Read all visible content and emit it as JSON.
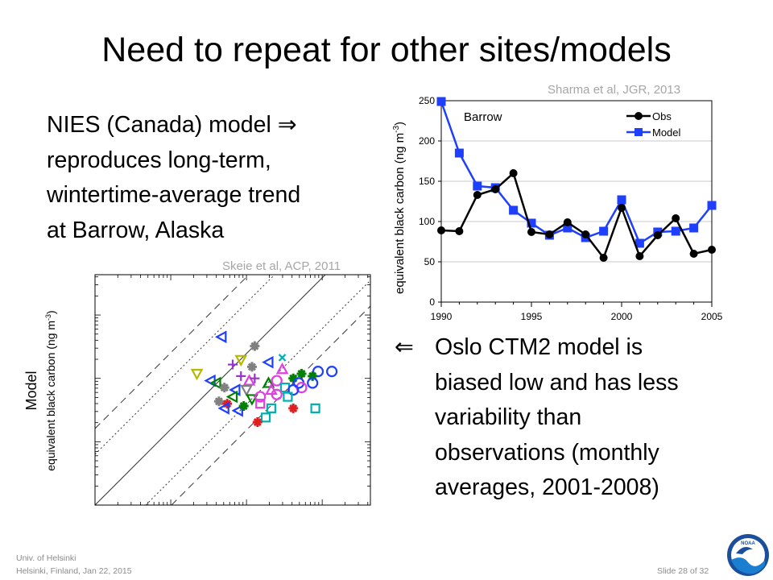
{
  "slide": {
    "title": "Need to repeat for other sites/models",
    "left_text": [
      "NIES (Canada) model   ⇒",
      "reproduces long-term,",
      "wintertime-average trend",
      "at Barrow, Alaska"
    ],
    "right_arrow": "⇐",
    "right_text": [
      "Oslo CTM2 model is",
      "biased low and has less",
      "variability than",
      "observations (monthly",
      "averages, 2001-2008)"
    ],
    "footer": {
      "line1": "Univ. of Helsinki",
      "line2": "Helsinki, Finland, Jan 22, 2015",
      "slide_number": "Slide 28 of 32",
      "logo_text": "NOAA"
    },
    "colors": {
      "obs": "#000000",
      "model": "#1f3fff"
    }
  },
  "chart_data": [
    {
      "type": "line",
      "citation": "Sharma et al, JGR, 2013",
      "annotation": "Barrow",
      "ylabel": "equivalent black carbon (ng m",
      "ylabel_sup": "-3",
      "ylabel_end": ")",
      "x_ticks": [
        1990,
        1995,
        2000,
        2005
      ],
      "y_ticks": [
        0,
        50,
        100,
        150,
        200,
        250
      ],
      "xlim": [
        1990,
        2005
      ],
      "ylim": [
        0,
        250
      ],
      "grid": "horizontal",
      "legend_position": "top-right",
      "series": [
        {
          "name": "Obs",
          "marker": "circle",
          "color": "#000000",
          "x": [
            1990,
            1991,
            1992,
            1993,
            1994,
            1995,
            1996,
            1997,
            1998,
            1999,
            2000,
            2001,
            2002,
            2003,
            2004,
            2005
          ],
          "y": [
            89,
            88,
            133,
            140,
            160,
            87,
            84,
            99,
            84,
            55,
            117,
            57,
            83,
            104,
            60,
            65
          ]
        },
        {
          "name": "Model",
          "marker": "square",
          "color": "#1f3fff",
          "x": [
            1990,
            1991,
            1992,
            1993,
            1994,
            1995,
            1996,
            1997,
            1998,
            1999,
            2000,
            2001,
            2002,
            2003,
            2004,
            2005
          ],
          "y": [
            249,
            185,
            144,
            142,
            114,
            98,
            83,
            92,
            80,
            88,
            127,
            73,
            87,
            88,
            92,
            120
          ]
        }
      ]
    },
    {
      "type": "scatter",
      "citation": "Skeie et al, ACP, 2011",
      "ylabel_line1": "Model",
      "ylabel_line2": "equivalent  black carbon (ng m",
      "ylabel_sup": "-3",
      "ylabel_end": ")",
      "x_scale": "log",
      "y_scale": "log",
      "reference_lines": [
        "1:1",
        "factor 2",
        "factor 10"
      ],
      "points": [
        {
          "m": "tri-left",
          "c": "#1f3fff",
          "x": 0.46,
          "y": 0.27
        },
        {
          "m": "star",
          "c": "#808080",
          "x": 0.58,
          "y": 0.31
        },
        {
          "m": "tri-down",
          "c": "#b8b800",
          "x": 0.53,
          "y": 0.37
        },
        {
          "m": "plus",
          "c": "#9933cc",
          "x": 0.5,
          "y": 0.39
        },
        {
          "m": "star",
          "c": "#808080",
          "x": 0.57,
          "y": 0.4
        },
        {
          "m": "tri-left",
          "c": "#1f3fff",
          "x": 0.63,
          "y": 0.38
        },
        {
          "m": "cross",
          "c": "#00b0b0",
          "x": 0.68,
          "y": 0.36
        },
        {
          "m": "tri-down",
          "c": "#b8b800",
          "x": 0.37,
          "y": 0.43
        },
        {
          "m": "plus",
          "c": "#9933cc",
          "x": 0.53,
          "y": 0.44
        },
        {
          "m": "tri-up",
          "c": "#e040e0",
          "x": 0.68,
          "y": 0.41
        },
        {
          "m": "star",
          "c": "#008000",
          "x": 0.75,
          "y": 0.43
        },
        {
          "m": "circle",
          "c": "#1f3fff",
          "x": 0.81,
          "y": 0.42
        },
        {
          "m": "circle",
          "c": "#1f3fff",
          "x": 0.86,
          "y": 0.42
        },
        {
          "m": "tri-left",
          "c": "#1f3fff",
          "x": 0.42,
          "y": 0.46
        },
        {
          "m": "tri-left",
          "c": "#008000",
          "x": 0.44,
          "y": 0.47
        },
        {
          "m": "tri-up",
          "c": "#e040e0",
          "x": 0.56,
          "y": 0.46
        },
        {
          "m": "plus",
          "c": "#9933cc",
          "x": 0.58,
          "y": 0.45
        },
        {
          "m": "tri-up",
          "c": "#008000",
          "x": 0.63,
          "y": 0.47
        },
        {
          "m": "circle",
          "c": "#e040e0",
          "x": 0.66,
          "y": 0.46
        },
        {
          "m": "star",
          "c": "#008000",
          "x": 0.72,
          "y": 0.45
        },
        {
          "m": "circle",
          "c": "#1f3fff",
          "x": 0.74,
          "y": 0.47
        },
        {
          "m": "star",
          "c": "#008000",
          "x": 0.79,
          "y": 0.44
        },
        {
          "m": "circle",
          "c": "#1f3fff",
          "x": 0.79,
          "y": 0.47
        },
        {
          "m": "circle",
          "c": "#e040e0",
          "x": 0.75,
          "y": 0.49
        },
        {
          "m": "star",
          "c": "#808080",
          "x": 0.47,
          "y": 0.49
        },
        {
          "m": "tri-left",
          "c": "#1f3fff",
          "x": 0.51,
          "y": 0.5
        },
        {
          "m": "tri-down",
          "c": "#808080",
          "x": 0.55,
          "y": 0.5
        },
        {
          "m": "tri-up",
          "c": "#e040e0",
          "x": 0.64,
          "y": 0.5
        },
        {
          "m": "square",
          "c": "#00b0b0",
          "x": 0.69,
          "y": 0.49
        },
        {
          "m": "circle",
          "c": "#1f3fff",
          "x": 0.72,
          "y": 0.5
        },
        {
          "m": "tri-left",
          "c": "#008000",
          "x": 0.5,
          "y": 0.53
        },
        {
          "m": "tri-down",
          "c": "#008000",
          "x": 0.57,
          "y": 0.54
        },
        {
          "m": "circle",
          "c": "#e040e0",
          "x": 0.6,
          "y": 0.53
        },
        {
          "m": "circle",
          "c": "#e040e0",
          "x": 0.66,
          "y": 0.52
        },
        {
          "m": "square",
          "c": "#00b0b0",
          "x": 0.7,
          "y": 0.53
        },
        {
          "m": "star",
          "c": "#808080",
          "x": 0.45,
          "y": 0.55
        },
        {
          "m": "square",
          "c": "#e040e0",
          "x": 0.6,
          "y": 0.56
        },
        {
          "m": "star",
          "c": "#e02020",
          "x": 0.48,
          "y": 0.56
        },
        {
          "m": "tri-left",
          "c": "#1f3fff",
          "x": 0.47,
          "y": 0.58
        },
        {
          "m": "tri-left",
          "c": "#1f3fff",
          "x": 0.52,
          "y": 0.59
        },
        {
          "m": "star",
          "c": "#008000",
          "x": 0.54,
          "y": 0.57
        },
        {
          "m": "square",
          "c": "#00b0b0",
          "x": 0.64,
          "y": 0.58
        },
        {
          "m": "star",
          "c": "#e02020",
          "x": 0.72,
          "y": 0.58
        },
        {
          "m": "square",
          "c": "#00b0b0",
          "x": 0.8,
          "y": 0.58
        },
        {
          "m": "square",
          "c": "#00b0b0",
          "x": 0.62,
          "y": 0.62
        },
        {
          "m": "star",
          "c": "#e02020",
          "x": 0.59,
          "y": 0.64
        }
      ]
    }
  ]
}
